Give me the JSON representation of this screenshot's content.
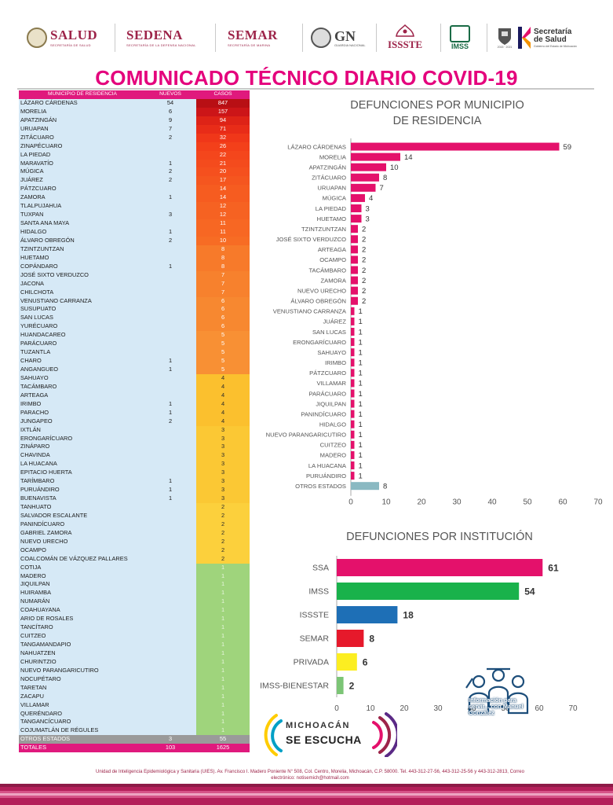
{
  "header": {
    "logos": {
      "salud": {
        "name": "SALUD",
        "sub": "SECRETARÍA DE SALUD"
      },
      "sedena": {
        "name": "SEDENA",
        "sub": "SECRETARÍA DE LA DEFENSA NACIONAL"
      },
      "semar": {
        "name": "SEMAR",
        "sub": "SECRETARÍA DE MARINA"
      },
      "gn": {
        "name": "GN",
        "sub": "GUARDIA NACIONAL"
      },
      "issste": {
        "name": "ISSSTE"
      },
      "imss": {
        "name": "IMSS"
      },
      "ssm": {
        "line1": "Secretaría",
        "line2": "de Salud",
        "sub": "Gobierno del Estado de Michoacán",
        "years": "2015 · 2021"
      }
    },
    "title": "COMUNICADO TÉCNICO DIARIO COVID-19"
  },
  "table": {
    "headers": {
      "municipio": "MUNICIPIO DE RESIDENCIA",
      "nuevos": "NUEVOS",
      "casos": "CASOS"
    },
    "rows": [
      {
        "m": "LÁZARO CÁRDENAS",
        "n": "54",
        "c": "847",
        "col": "#b80f14"
      },
      {
        "m": "MORELIA",
        "n": "6",
        "c": "157",
        "col": "#cc1518"
      },
      {
        "m": "APATZINGÁN",
        "n": "9",
        "c": "94",
        "col": "#de2317"
      },
      {
        "m": "URUAPAN",
        "n": "7",
        "c": "71",
        "col": "#e82c18"
      },
      {
        "m": "ZITÁCUARO",
        "n": "2",
        "c": "32",
        "col": "#f03719"
      },
      {
        "m": "ZINAPÉCUARO",
        "n": "",
        "c": "26",
        "col": "#f3401a"
      },
      {
        "m": "LA PIEDAD",
        "n": "",
        "c": "22",
        "col": "#f4461c"
      },
      {
        "m": "MARAVATÍO",
        "n": "1",
        "c": "21",
        "col": "#f44b1d"
      },
      {
        "m": "MÚGICA",
        "n": "2",
        "c": "20",
        "col": "#f5501e"
      },
      {
        "m": "JUÁREZ",
        "n": "2",
        "c": "17",
        "col": "#f5561f"
      },
      {
        "m": "PÁTZCUARO",
        "n": "",
        "c": "14",
        "col": "#f65c20"
      },
      {
        "m": "ZAMORA",
        "n": "1",
        "c": "14",
        "col": "#f65c20"
      },
      {
        "m": "TLALPUJAHUA",
        "n": "",
        "c": "12",
        "col": "#f66222"
      },
      {
        "m": "TUXPAN",
        "n": "3",
        "c": "12",
        "col": "#f66222"
      },
      {
        "m": "SANTA ANA MAYA",
        "n": "",
        "c": "11",
        "col": "#f76723"
      },
      {
        "m": "HIDALGO",
        "n": "1",
        "c": "11",
        "col": "#f76723"
      },
      {
        "m": "ÁLVARO OBREGÓN",
        "n": "2",
        "c": "10",
        "col": "#f76c24"
      },
      {
        "m": "TZINTZUNTZAN",
        "n": "",
        "c": "8",
        "col": "#f77a2a"
      },
      {
        "m": "HUETAMO",
        "n": "",
        "c": "8",
        "col": "#f77a2a"
      },
      {
        "m": "COPÁNDARO",
        "n": "1",
        "c": "8",
        "col": "#f77a2a"
      },
      {
        "m": "JOSÉ SIXTO VERDUZCO",
        "n": "",
        "c": "7",
        "col": "#f7812d"
      },
      {
        "m": "JACONA",
        "n": "",
        "c": "7",
        "col": "#f7812d"
      },
      {
        "m": "CHILCHOTA",
        "n": "",
        "c": "7",
        "col": "#f7812d"
      },
      {
        "m": "VENUSTIANO CARRANZA",
        "n": "",
        "c": "6",
        "col": "#f78830"
      },
      {
        "m": "SUSUPUATO",
        "n": "",
        "c": "6",
        "col": "#f78830"
      },
      {
        "m": "SAN LUCAS",
        "n": "",
        "c": "6",
        "col": "#f78830"
      },
      {
        "m": "YURÉCUARO",
        "n": "",
        "c": "6",
        "col": "#f78830"
      },
      {
        "m": "HUANDACAREO",
        "n": "",
        "c": "5",
        "col": "#f89034"
      },
      {
        "m": "PARÁCUARO",
        "n": "",
        "c": "5",
        "col": "#f89034"
      },
      {
        "m": "TUZANTLA",
        "n": "",
        "c": "5",
        "col": "#f89034"
      },
      {
        "m": "CHARO",
        "n": "1",
        "c": "5",
        "col": "#f89034"
      },
      {
        "m": "ANGANGUEO",
        "n": "1",
        "c": "5",
        "col": "#f89034"
      },
      {
        "m": "SAHUAYO",
        "n": "",
        "c": "4",
        "col": "#fbc02e"
      },
      {
        "m": "TACÁMBARO",
        "n": "",
        "c": "4",
        "col": "#fbc02e"
      },
      {
        "m": "ARTEAGA",
        "n": "",
        "c": "4",
        "col": "#fbc02e"
      },
      {
        "m": "IRIMBO",
        "n": "1",
        "c": "4",
        "col": "#fbc02e"
      },
      {
        "m": "PARACHO",
        "n": "1",
        "c": "4",
        "col": "#fbc02e"
      },
      {
        "m": "JUNGAPEO",
        "n": "2",
        "c": "4",
        "col": "#fbc02e"
      },
      {
        "m": "IXTLÁN",
        "n": "",
        "c": "3",
        "col": "#fbc834"
      },
      {
        "m": "ERONGARÍCUARO",
        "n": "",
        "c": "3",
        "col": "#fbc834"
      },
      {
        "m": "ZINÁPARO",
        "n": "",
        "c": "3",
        "col": "#fbc834"
      },
      {
        "m": "CHAVINDA",
        "n": "",
        "c": "3",
        "col": "#fbc834"
      },
      {
        "m": "LA HUACANA",
        "n": "",
        "c": "3",
        "col": "#fbc834"
      },
      {
        "m": "EPITACIO HUERTA",
        "n": "",
        "c": "3",
        "col": "#fbc834"
      },
      {
        "m": "TARÍMBARO",
        "n": "1",
        "c": "3",
        "col": "#fbc834"
      },
      {
        "m": "PURUÁNDIRO",
        "n": "1",
        "c": "3",
        "col": "#fbc834"
      },
      {
        "m": "BUENAVISTA",
        "n": "1",
        "c": "3",
        "col": "#fbc834"
      },
      {
        "m": "TANHUATO",
        "n": "",
        "c": "2",
        "col": "#fcd03c"
      },
      {
        "m": "SALVADOR ESCALANTE",
        "n": "",
        "c": "2",
        "col": "#fcd03c"
      },
      {
        "m": "PANINDÍCUARO",
        "n": "",
        "c": "2",
        "col": "#fcd03c"
      },
      {
        "m": "GABRIEL ZAMORA",
        "n": "",
        "c": "2",
        "col": "#fcd03c"
      },
      {
        "m": "NUEVO URECHO",
        "n": "",
        "c": "2",
        "col": "#fcd03c"
      },
      {
        "m": "OCAMPO",
        "n": "",
        "c": "2",
        "col": "#fcd03c"
      },
      {
        "m": "COALCOMÁN DE VÁZQUEZ PALLARES",
        "n": "",
        "c": "2",
        "col": "#fcd03c"
      },
      {
        "m": "COTIJA",
        "n": "",
        "c": "1",
        "col": "#9fd47c"
      },
      {
        "m": "MADERO",
        "n": "",
        "c": "1",
        "col": "#9fd47c"
      },
      {
        "m": "JIQUILPAN",
        "n": "",
        "c": "1",
        "col": "#9fd47c"
      },
      {
        "m": "HUIRAMBA",
        "n": "",
        "c": "1",
        "col": "#9fd47c"
      },
      {
        "m": "NUMARÁN",
        "n": "",
        "c": "1",
        "col": "#9fd47c"
      },
      {
        "m": "COAHUAYANA",
        "n": "",
        "c": "1",
        "col": "#9fd47c"
      },
      {
        "m": "ARIO DE ROSALES",
        "n": "",
        "c": "1",
        "col": "#9fd47c"
      },
      {
        "m": "TANCÍTARO",
        "n": "",
        "c": "1",
        "col": "#9fd47c"
      },
      {
        "m": "CUITZEO",
        "n": "",
        "c": "1",
        "col": "#9fd47c"
      },
      {
        "m": "TANGAMANDAPIO",
        "n": "",
        "c": "1",
        "col": "#9fd47c"
      },
      {
        "m": "NAHUATZEN",
        "n": "",
        "c": "1",
        "col": "#9fd47c"
      },
      {
        "m": "CHURINTZIO",
        "n": "",
        "c": "1",
        "col": "#9fd47c"
      },
      {
        "m": "NUEVO PARANGARICUTIRO",
        "n": "",
        "c": "1",
        "col": "#9fd47c"
      },
      {
        "m": "NOCUPÉTARO",
        "n": "",
        "c": "1",
        "col": "#9fd47c"
      },
      {
        "m": "TARETAN",
        "n": "",
        "c": "1",
        "col": "#9fd47c"
      },
      {
        "m": "ZACAPU",
        "n": "",
        "c": "1",
        "col": "#9fd47c"
      },
      {
        "m": "VILLAMAR",
        "n": "",
        "c": "1",
        "col": "#9fd47c"
      },
      {
        "m": "QUERÉNDARO",
        "n": "",
        "c": "1",
        "col": "#9fd47c"
      },
      {
        "m": "TANGANCÍCUARO",
        "n": "",
        "c": "1",
        "col": "#9fd47c"
      },
      {
        "m": "COJUMATLÁN DE RÉGULES",
        "n": "",
        "c": "1",
        "col": "#9fd47c"
      }
    ],
    "otros": {
      "m": "OTROS ESTADOS",
      "n": "3",
      "c": "55"
    },
    "totales": {
      "m": "TOTALES",
      "n": "103",
      "c": "1625"
    }
  },
  "chart_data": [
    {
      "type": "bar",
      "orientation": "horizontal",
      "title": "DEFUNCIONES POR MUNICIPIO DE RESIDENCIA",
      "title_line1": "DEFUNCIONES POR MUNICIPIO",
      "title_line2": "DE RESIDENCIA",
      "categories": [
        "LÁZARO CÁRDENAS",
        "MORELIA",
        "APATZINGÁN",
        "ZITÁCUARO",
        "URUAPAN",
        "MÚGICA",
        "LA PIEDAD",
        "HUETAMO",
        "TZINTZUNTZAN",
        "JOSÉ SIXTO VERDUZCO",
        "ARTEAGA",
        "OCAMPO",
        "TACÁMBARO",
        "ZAMORA",
        "NUEVO URECHO",
        "ÁLVARO OBREGÓN",
        "VENUSTIANO CARRANZA",
        "JUÁREZ",
        "SAN LUCAS",
        "ERONGARÍCUARO",
        "SAHUAYO",
        "IRIMBO",
        "PÁTZCUARO",
        "VILLAMAR",
        "PARÁCUARO",
        "JIQUILPAN",
        "PANINDÍCUARO",
        "HIDALGO",
        "NUEVO PARANGARICUTIRO",
        "CUITZEO",
        "MADERO",
        "LA HUACANA",
        "PURUÁNDIRO",
        "OTROS ESTADOS"
      ],
      "values": [
        59,
        14,
        10,
        8,
        7,
        4,
        3,
        3,
        2,
        2,
        2,
        2,
        2,
        2,
        2,
        2,
        1,
        1,
        1,
        1,
        1,
        1,
        1,
        1,
        1,
        1,
        1,
        1,
        1,
        1,
        1,
        1,
        1,
        8
      ],
      "colors": {
        "bar": "#e4116b",
        "other": "#8ab9c2"
      },
      "xlim": [
        0,
        70
      ],
      "xticks": [
        0,
        10,
        20,
        30,
        40,
        50,
        60,
        70
      ]
    },
    {
      "type": "bar",
      "orientation": "horizontal",
      "title": "DEFUNCIONES POR INSTITUCIÓN",
      "categories": [
        "SSA",
        "IMSS",
        "ISSSTE",
        "SEMAR",
        "PRIVADA",
        "IMSS-BIENESTAR"
      ],
      "values": [
        61,
        54,
        18,
        8,
        6,
        2
      ],
      "colors": [
        "#e4116b",
        "#19b24b",
        "#1e6fb6",
        "#e6192b",
        "#fcee21",
        "#7cc576"
      ],
      "xlim": [
        0,
        70
      ],
      "xticks": [
        0,
        10,
        20,
        30,
        40,
        50,
        60,
        70
      ]
    }
  ],
  "watermark": {
    "text": "Información para servir... con Manuel González"
  },
  "michoacan": {
    "line1": "MICHOACÁN",
    "line2": "SE ESCUCHA"
  },
  "footer": {
    "line1": "Unidad de Inteligencia Epidemiológica y Sanitaria (UIES). Av. Francisco I. Madero Poniente N° 508, Col. Centro, Morelia, Michoacán, C.P. 58000. Tel. 443-312-27-56, 443-312-25-56 y 443-312-2813, Correo",
    "line2": "electrónico: notisemich@hotmail.com"
  }
}
